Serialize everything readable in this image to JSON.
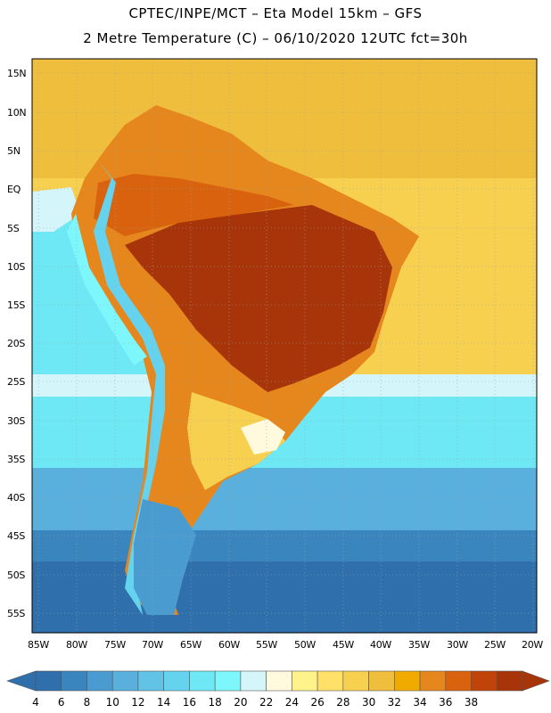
{
  "title_line1": "CPTEC/INPE/MCT –   Eta Model 15km – GFS",
  "title_line2": "2 Metre Temperature (C) – 06/10/2020 12UTC fct=30h",
  "lat_labels": [
    "15N",
    "10N",
    "5N",
    "EQ",
    "5S",
    "10S",
    "15S",
    "20S",
    "25S",
    "30S",
    "35S",
    "40S",
    "45S",
    "50S",
    "55S"
  ],
  "lon_labels": [
    "85W",
    "80W",
    "75W",
    "70W",
    "65W",
    "60W",
    "55W",
    "50W",
    "45W",
    "40W",
    "35W",
    "30W",
    "25W",
    "20W"
  ],
  "colorbar": {
    "min_color": "#2f6fac",
    "max_color": "#a8340a",
    "values": [
      "4",
      "6",
      "8",
      "10",
      "12",
      "14",
      "16",
      "18",
      "20",
      "22",
      "24",
      "26",
      "28",
      "30",
      "32",
      "34",
      "36",
      "38"
    ],
    "colors": [
      "#2f6fac",
      "#3a85bd",
      "#4a9bcf",
      "#5ab0dc",
      "#62c3e6",
      "#66d3ee",
      "#6ee8f5",
      "#7df6fc",
      "#d4f6fb",
      "#fff9de",
      "#fff28a",
      "#ffe16a",
      "#f7d050",
      "#efbe3c",
      "#f0aa00",
      "#e6871e",
      "#d8620e",
      "#c0440a",
      "#a8340a"
    ]
  },
  "map_colors": {
    "ocean_deep": "#2f6fac",
    "ocean_south": "#3a85bd",
    "ocean_mid": "#5ab0dc",
    "ocean_cyan": "#6ee8f5",
    "ocean_warm": "#f7d050",
    "ocean_tropical": "#efbe3c",
    "land_hot": "#a8340a",
    "land_warm": "#d8620e",
    "land_mild": "#e6871e",
    "andes_cold": "#66d3ee",
    "patagonia": "#4a9bcf"
  }
}
